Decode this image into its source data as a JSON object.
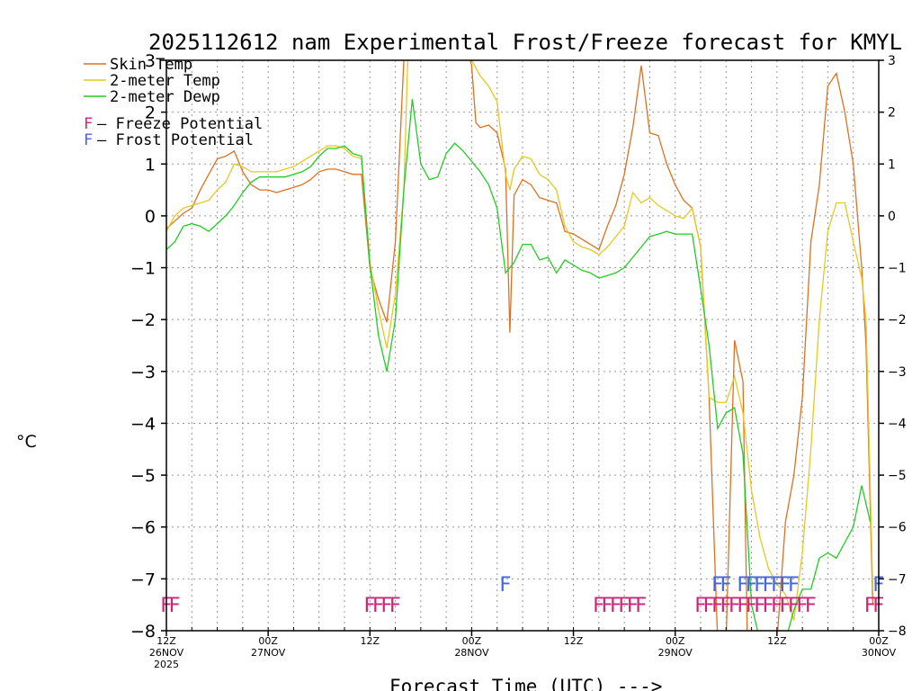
{
  "chart_data": {
    "type": "line",
    "title": "2025112612 nam Experimental Frost/Freeze forecast for KMYL",
    "ylabel": "°C",
    "xlabel": "Forecast Time (UTC) --->",
    "ylim": [
      -8,
      3
    ],
    "xlim": [
      0,
      84
    ],
    "yticks": [
      3,
      2,
      1,
      0,
      -1,
      -2,
      -3,
      -4,
      -5,
      -6,
      -7,
      -8
    ],
    "yticks_left": [
      "3",
      "2",
      "1",
      "0",
      "−1",
      "−2",
      "−3",
      "−4",
      "−5",
      "−6",
      "−7",
      "−8"
    ],
    "yticks_right": [
      "3",
      "2",
      "1",
      "0",
      "−1",
      "−2",
      "−3",
      "−4",
      "−5",
      "−6",
      "−7",
      "−8"
    ],
    "xticks": [
      {
        "x": 0,
        "line1": "12Z",
        "line2": "26NOV",
        "line3": "2025"
      },
      {
        "x": 12,
        "line1": "00Z",
        "line2": "27NOV",
        "line3": ""
      },
      {
        "x": 24,
        "line1": "12Z",
        "line2": "",
        "line3": ""
      },
      {
        "x": 36,
        "line1": "00Z",
        "line2": "28NOV",
        "line3": ""
      },
      {
        "x": 48,
        "line1": "12Z",
        "line2": "",
        "line3": ""
      },
      {
        "x": 60,
        "line1": "00Z",
        "line2": "29NOV",
        "line3": ""
      },
      {
        "x": 72,
        "line1": "12Z",
        "line2": "",
        "line3": ""
      },
      {
        "x": 84,
        "line1": "00Z",
        "line2": "30NOV",
        "line3": ""
      }
    ],
    "series": [
      {
        "name": "Skin Temp",
        "color": "#e07020",
        "points": [
          [
            0,
            -0.25
          ],
          [
            1,
            -0.1
          ],
          [
            2,
            0.05
          ],
          [
            3,
            0.15
          ],
          [
            4,
            0.5
          ],
          [
            5,
            0.8
          ],
          [
            6,
            1.1
          ],
          [
            7,
            1.15
          ],
          [
            8,
            1.25
          ],
          [
            9,
            0.85
          ],
          [
            10,
            0.6
          ],
          [
            11,
            0.5
          ],
          [
            12,
            0.5
          ],
          [
            13,
            0.45
          ],
          [
            14,
            0.5
          ],
          [
            15,
            0.55
          ],
          [
            16,
            0.6
          ],
          [
            17,
            0.7
          ],
          [
            18,
            0.85
          ],
          [
            19,
            0.9
          ],
          [
            20,
            0.9
          ],
          [
            21,
            0.85
          ],
          [
            22,
            0.8
          ],
          [
            23,
            0.8
          ],
          [
            24,
            -1.0
          ],
          [
            25,
            -1.6
          ],
          [
            26,
            -2.05
          ],
          [
            27,
            -0.5
          ],
          [
            28,
            3.0
          ],
          [
            28.5,
            3.2
          ],
          [
            35.5,
            3.2
          ],
          [
            36,
            2.9
          ],
          [
            36.5,
            1.8
          ],
          [
            37,
            1.7
          ],
          [
            38,
            1.75
          ],
          [
            39,
            1.6
          ],
          [
            40,
            0.9
          ],
          [
            40.5,
            -2.25
          ],
          [
            41,
            0.4
          ],
          [
            42,
            0.7
          ],
          [
            43,
            0.6
          ],
          [
            44,
            0.35
          ],
          [
            45,
            0.3
          ],
          [
            46,
            0.25
          ],
          [
            47,
            -0.3
          ],
          [
            48,
            -0.35
          ],
          [
            49,
            -0.45
          ],
          [
            50,
            -0.55
          ],
          [
            51,
            -0.65
          ],
          [
            52,
            -0.2
          ],
          [
            53,
            0.2
          ],
          [
            54,
            0.8
          ],
          [
            55,
            1.7
          ],
          [
            56,
            2.9
          ],
          [
            57,
            1.6
          ],
          [
            58,
            1.55
          ],
          [
            59,
            1.0
          ],
          [
            60,
            0.6
          ],
          [
            61,
            0.3
          ],
          [
            62,
            0.15
          ],
          [
            63,
            -0.6
          ],
          [
            64,
            -3.5
          ],
          [
            65,
            -8.2
          ],
          [
            66,
            -8.2
          ],
          [
            67,
            -2.4
          ],
          [
            68,
            -3.2
          ],
          [
            68.5,
            -8.2
          ],
          [
            72,
            -8.2
          ],
          [
            73,
            -5.9
          ],
          [
            74,
            -5.0
          ],
          [
            75,
            -3.5
          ],
          [
            76,
            -0.5
          ],
          [
            77,
            0.6
          ],
          [
            78,
            2.5
          ],
          [
            79,
            2.75
          ],
          [
            80,
            2.0
          ],
          [
            81,
            1.0
          ],
          [
            82,
            -1.0
          ],
          [
            82.5,
            -2.5
          ],
          [
            83.3,
            -7.5
          ]
        ]
      },
      {
        "name": "2-meter Temp",
        "color": "#e6c820",
        "points": [
          [
            0,
            -0.3
          ],
          [
            1,
            0.0
          ],
          [
            2,
            0.15
          ],
          [
            3,
            0.2
          ],
          [
            4,
            0.25
          ],
          [
            5,
            0.3
          ],
          [
            6,
            0.5
          ],
          [
            7,
            0.65
          ],
          [
            8,
            1.0
          ],
          [
            9,
            0.95
          ],
          [
            10,
            0.85
          ],
          [
            11,
            0.85
          ],
          [
            12,
            0.85
          ],
          [
            13,
            0.85
          ],
          [
            14,
            0.9
          ],
          [
            15,
            0.95
          ],
          [
            16,
            1.05
          ],
          [
            17,
            1.15
          ],
          [
            18,
            1.25
          ],
          [
            19,
            1.35
          ],
          [
            20,
            1.35
          ],
          [
            21,
            1.3
          ],
          [
            22,
            1.15
          ],
          [
            23,
            1.1
          ],
          [
            24,
            -0.9
          ],
          [
            25,
            -1.8
          ],
          [
            26,
            -2.55
          ],
          [
            27,
            -1.5
          ],
          [
            28,
            0.5
          ],
          [
            28.5,
            3.2
          ],
          [
            35.5,
            3.2
          ],
          [
            36,
            3.0
          ],
          [
            37,
            2.7
          ],
          [
            38,
            2.5
          ],
          [
            39,
            2.2
          ],
          [
            40,
            0.8
          ],
          [
            40.5,
            0.5
          ],
          [
            41,
            0.9
          ],
          [
            42,
            1.15
          ],
          [
            43,
            1.1
          ],
          [
            44,
            0.8
          ],
          [
            45,
            0.7
          ],
          [
            46,
            0.5
          ],
          [
            47,
            -0.2
          ],
          [
            48,
            -0.5
          ],
          [
            49,
            -0.6
          ],
          [
            50,
            -0.65
          ],
          [
            51,
            -0.75
          ],
          [
            52,
            -0.6
          ],
          [
            53,
            -0.4
          ],
          [
            54,
            -0.2
          ],
          [
            55,
            0.45
          ],
          [
            56,
            0.25
          ],
          [
            57,
            0.35
          ],
          [
            58,
            0.2
          ],
          [
            59,
            0.1
          ],
          [
            60,
            0.0
          ],
          [
            61,
            -0.05
          ],
          [
            62,
            0.15
          ],
          [
            63,
            -0.6
          ],
          [
            64,
            -3.5
          ],
          [
            65,
            -3.6
          ],
          [
            66,
            -3.6
          ],
          [
            67,
            -3.1
          ],
          [
            68,
            -3.8
          ],
          [
            69,
            -5.3
          ],
          [
            70,
            -6.2
          ],
          [
            71,
            -6.8
          ],
          [
            72,
            -7.1
          ],
          [
            73,
            -7.3
          ],
          [
            74,
            -7.8
          ],
          [
            75,
            -6.5
          ],
          [
            76,
            -4.5
          ],
          [
            77,
            -2.0
          ],
          [
            78,
            -0.3
          ],
          [
            79,
            0.25
          ],
          [
            80,
            0.25
          ],
          [
            81,
            -0.5
          ],
          [
            82,
            -1.2
          ],
          [
            82.5,
            -2.0
          ],
          [
            83.3,
            -7.2
          ]
        ]
      },
      {
        "name": "2-meter Dewp",
        "color": "#22cc22",
        "points": [
          [
            0,
            -0.65
          ],
          [
            1,
            -0.5
          ],
          [
            2,
            -0.2
          ],
          [
            3,
            -0.15
          ],
          [
            4,
            -0.2
          ],
          [
            5,
            -0.3
          ],
          [
            6,
            -0.15
          ],
          [
            7,
            0.0
          ],
          [
            8,
            0.2
          ],
          [
            9,
            0.45
          ],
          [
            10,
            0.65
          ],
          [
            11,
            0.75
          ],
          [
            12,
            0.75
          ],
          [
            13,
            0.75
          ],
          [
            14,
            0.75
          ],
          [
            15,
            0.8
          ],
          [
            16,
            0.85
          ],
          [
            17,
            0.95
          ],
          [
            18,
            1.15
          ],
          [
            19,
            1.3
          ],
          [
            20,
            1.3
          ],
          [
            21,
            1.35
          ],
          [
            22,
            1.2
          ],
          [
            23,
            1.15
          ],
          [
            24,
            -0.95
          ],
          [
            25,
            -2.3
          ],
          [
            26,
            -3.0
          ],
          [
            27,
            -2.0
          ],
          [
            28,
            0.5
          ],
          [
            29,
            2.25
          ],
          [
            30,
            1.0
          ],
          [
            31,
            0.7
          ],
          [
            32,
            0.75
          ],
          [
            33,
            1.2
          ],
          [
            34,
            1.4
          ],
          [
            35,
            1.25
          ],
          [
            36,
            1.05
          ],
          [
            37,
            0.85
          ],
          [
            38,
            0.6
          ],
          [
            39,
            0.15
          ],
          [
            40,
            -1.1
          ],
          [
            41,
            -0.9
          ],
          [
            42,
            -0.55
          ],
          [
            43,
            -0.55
          ],
          [
            44,
            -0.85
          ],
          [
            45,
            -0.8
          ],
          [
            46,
            -1.1
          ],
          [
            47,
            -0.85
          ],
          [
            48,
            -0.95
          ],
          [
            49,
            -1.05
          ],
          [
            50,
            -1.1
          ],
          [
            51,
            -1.2
          ],
          [
            52,
            -1.15
          ],
          [
            53,
            -1.1
          ],
          [
            54,
            -1.0
          ],
          [
            55,
            -0.8
          ],
          [
            56,
            -0.6
          ],
          [
            57,
            -0.4
          ],
          [
            58,
            -0.35
          ],
          [
            59,
            -0.3
          ],
          [
            60,
            -0.35
          ],
          [
            61,
            -0.35
          ],
          [
            62,
            -0.35
          ],
          [
            63,
            -1.4
          ],
          [
            64,
            -2.5
          ],
          [
            65,
            -4.1
          ],
          [
            66,
            -3.8
          ],
          [
            67,
            -3.7
          ],
          [
            68,
            -4.6
          ],
          [
            69,
            -7.5
          ],
          [
            70,
            -8.2
          ],
          [
            72,
            -8.2
          ],
          [
            73,
            -8.2
          ],
          [
            74,
            -7.6
          ],
          [
            75,
            -7.2
          ],
          [
            76,
            -7.2
          ],
          [
            77,
            -6.6
          ],
          [
            78,
            -6.5
          ],
          [
            79,
            -6.6
          ],
          [
            80,
            -6.3
          ],
          [
            81,
            -6.0
          ],
          [
            82,
            -5.2
          ],
          [
            83,
            -5.9
          ]
        ]
      }
    ],
    "legend": [
      {
        "label": "Skin Temp",
        "color": "#e07020"
      },
      {
        "label": "2-meter Temp",
        "color": "#e6c820"
      },
      {
        "label": "2-meter Dewp",
        "color": "#22cc22"
      }
    ],
    "potential_legend": [
      {
        "letter": "F",
        "text": " — Freeze Potential",
        "color": "#cc2277"
      },
      {
        "letter": "F",
        "text": " — Frost Potential",
        "color": "#4466dd"
      }
    ],
    "freeze_markers": {
      "color": "#cc2277",
      "y": -7.5,
      "x": [
        0,
        1,
        24,
        25,
        26,
        27,
        51,
        52,
        53,
        54,
        55,
        56,
        63,
        64,
        65,
        66,
        67,
        68,
        69,
        70,
        71,
        72,
        73,
        74,
        75,
        76,
        83,
        84
      ]
    },
    "frost_markers": {
      "color": "#4466dd",
      "y": -7.1,
      "x": [
        40,
        65,
        66,
        68,
        69,
        70,
        71,
        72,
        73,
        74,
        84
      ]
    }
  }
}
